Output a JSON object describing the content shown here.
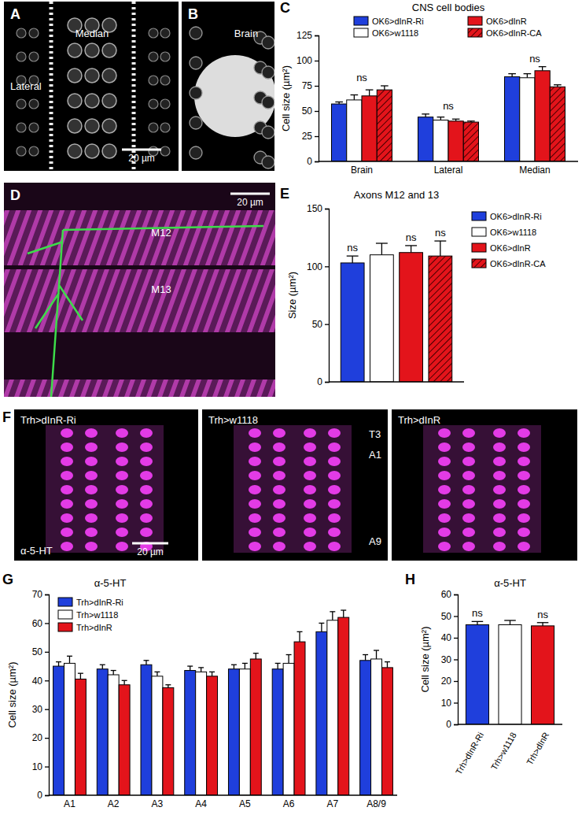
{
  "chart_data": [
    {
      "type": "bar",
      "panel": "C",
      "title": "CNS cell bodies",
      "y_label": "Cell size (µm²)",
      "categories": [
        "Brain",
        "Lateral",
        "Median"
      ],
      "series": [
        {
          "name": "OK6>dInR-Ri",
          "color": "#1f3fdc",
          "values": [
            57,
            44,
            84
          ],
          "errors": [
            2,
            3,
            3
          ]
        },
        {
          "name": "OK6>w1118",
          "color": "#ffffff",
          "values": [
            61,
            41,
            83
          ],
          "errors": [
            5,
            3,
            4
          ]
        },
        {
          "name": "OK6>dInR",
          "color": "#e3141b",
          "values": [
            65,
            40,
            90
          ],
          "errors": [
            6,
            2,
            4
          ]
        },
        {
          "name": "OK6>dInR-CA",
          "color": "#e3141b",
          "line_style": "hatched",
          "values": [
            71,
            39,
            74
          ],
          "errors": [
            4,
            1,
            2
          ]
        }
      ],
      "annotations": [
        "ns",
        "ns",
        "ns"
      ],
      "ylim": [
        0,
        125
      ],
      "yticks": [
        0,
        25,
        50,
        75,
        100,
        125
      ],
      "legend": "top"
    },
    {
      "type": "bar",
      "panel": "E",
      "title": "Axons M12 and 13",
      "y_label": "Size (µm²)",
      "categories": [
        null
      ],
      "series": [
        {
          "name": "OK6>dInR-Ri",
          "color": "#1f3fdc",
          "values": [
            103
          ],
          "errors": [
            6
          ],
          "annotation": "ns"
        },
        {
          "name": "OK6>w1118",
          "color": "#ffffff",
          "values": [
            110
          ],
          "errors": [
            10
          ],
          "annotation": null
        },
        {
          "name": "OK6>dInR",
          "color": "#e3141b",
          "values": [
            112
          ],
          "errors": [
            6
          ],
          "annotation": "ns"
        },
        {
          "name": "OK6>dInR-CA",
          "color": "#e3141b",
          "line_style": "hatched",
          "values": [
            109
          ],
          "errors": [
            13
          ],
          "annotation": "ns"
        }
      ],
      "ylim": [
        0,
        150
      ],
      "yticks": [
        0,
        50,
        100,
        150
      ],
      "legend": "right"
    },
    {
      "type": "bar",
      "panel": "G",
      "title": "α-5-HT",
      "y_label": "Cell size (µm²)",
      "categories": [
        "A1",
        "A2",
        "A3",
        "A4",
        "A5",
        "A6",
        "A7",
        "A8/9"
      ],
      "series": [
        {
          "name": "Trh>dInR-Ri",
          "color": "#1f3fdc",
          "values": [
            45,
            44,
            45.5,
            43.5,
            44,
            44,
            57,
            47
          ],
          "errors": [
            1.5,
            1.5,
            1.5,
            1.5,
            1.5,
            2,
            3,
            2
          ]
        },
        {
          "name": "Trh>w1118",
          "color": "#ffffff",
          "values": [
            46,
            42,
            41.5,
            43,
            44,
            46,
            61,
            47.5
          ],
          "errors": [
            2.5,
            1.5,
            1.5,
            1.5,
            2,
            3,
            3,
            3
          ]
        },
        {
          "name": "Trh>dInR",
          "color": "#e3141b",
          "values": [
            40.5,
            38.5,
            37.5,
            41.5,
            47.5,
            53.5,
            62,
            44.5
          ],
          "errors": [
            2,
            1.5,
            1,
            1.5,
            2,
            3.5,
            2.5,
            2
          ]
        }
      ],
      "ylim": [
        0,
        70
      ],
      "yticks": [
        0,
        10,
        20,
        30,
        40,
        50,
        60,
        70
      ],
      "legend": "top-left"
    },
    {
      "type": "bar",
      "panel": "H",
      "title": "α-5-HT",
      "y_label": "Cell size (µm²)",
      "categories": [
        "Trh>dInR-Ri",
        "Trh>w1118",
        "Trh>dInR"
      ],
      "values": [
        46,
        46,
        45.5
      ],
      "errors": [
        1.5,
        2,
        1.5
      ],
      "colors": [
        "#1f3fdc",
        "#ffffff",
        "#e3141b"
      ],
      "annotations": [
        "ns",
        null,
        "ns"
      ],
      "ylim": [
        0,
        60
      ],
      "yticks": [
        0,
        10,
        20,
        30,
        40,
        50,
        60
      ]
    }
  ],
  "images": [
    {
      "panel": "A",
      "texts": [
        "Median",
        "Lateral"
      ],
      "scale_bar": "20 µm"
    },
    {
      "panel": "B",
      "texts": [
        "Brain"
      ]
    },
    {
      "panel": "D",
      "texts": [
        "M12",
        "M13"
      ],
      "scale_bar": "20 µm"
    },
    {
      "panel": "F",
      "texts": [
        "Trh>dInR-Ri",
        "α-5-HT"
      ],
      "scale_bar": "20 µm"
    },
    {
      "texts": [
        "Trh>w1118",
        "T3",
        "A1",
        "A9"
      ]
    },
    {
      "texts": [
        "Trh>dInR"
      ]
    }
  ]
}
